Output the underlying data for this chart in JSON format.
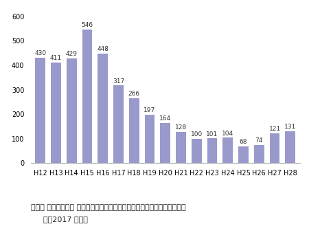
{
  "categories": [
    "H12",
    "H13",
    "H14",
    "H15",
    "H16",
    "H17",
    "H18",
    "H19",
    "H20",
    "H21",
    "H22",
    "H23",
    "H24",
    "H25",
    "H26",
    "H27",
    "H28"
  ],
  "values": [
    430,
    411,
    429,
    546,
    448,
    317,
    266,
    197,
    164,
    128,
    100,
    101,
    104,
    68,
    74,
    121,
    131
  ],
  "bar_color": "#9999cc",
  "ylim": [
    0,
    600
  ],
  "yticks": [
    0,
    100,
    200,
    300,
    400,
    500,
    600
  ],
  "caption_line1": "出典： 公益財団法人 住宅リフォーム・住宅紛争支援センター「住宅相談統",
  "caption_line2": "計年2017 資料」",
  "caption_indent": "    ",
  "caption_fontsize": 8.0,
  "tick_fontsize": 7.0,
  "bar_value_fontsize": 6.5
}
